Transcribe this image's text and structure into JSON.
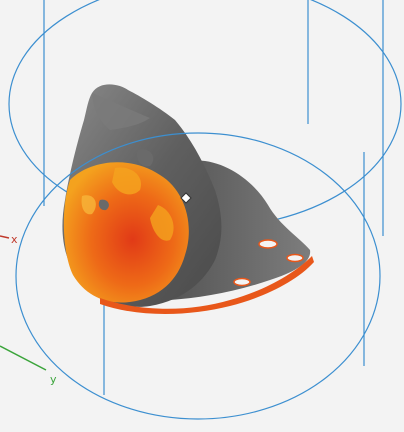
{
  "viewport": {
    "background": "#f3f3f3",
    "cylinder_color": "#3c8fd0",
    "axes": {
      "x_label": "x",
      "x_color": "#c0392b",
      "y_label": "y",
      "y_color": "#3aa43a"
    }
  },
  "model": {
    "base_color": "#6c6c6c",
    "heatmap_colors": [
      "#f4a21e",
      "#ee6a17",
      "#e13a17"
    ],
    "rim_color": "#e8571a",
    "marker_icon": "diamond-marker-icon"
  }
}
